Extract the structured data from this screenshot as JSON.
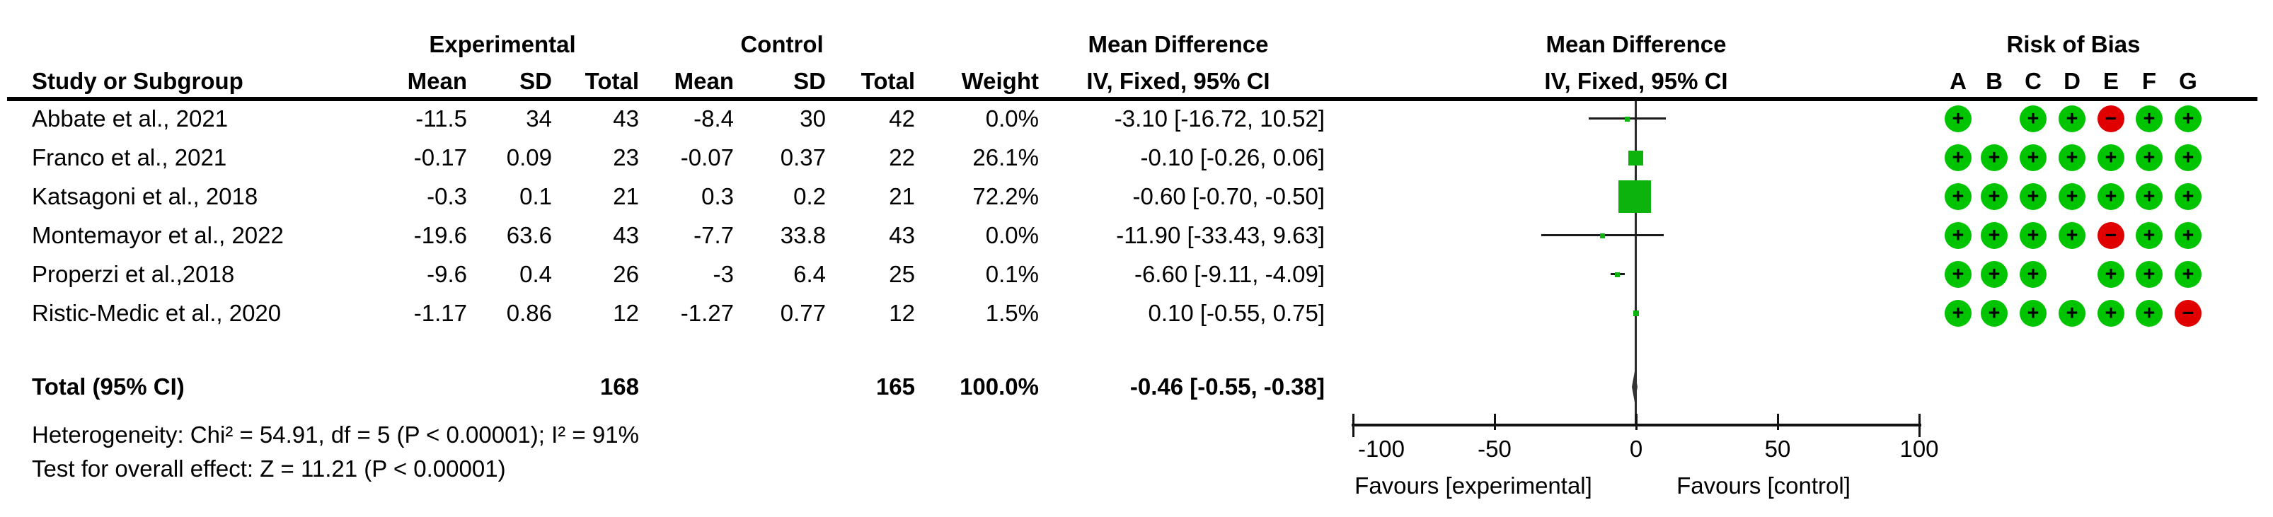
{
  "titles": {
    "experimental": "Experimental",
    "control": "Control",
    "md_table": "Mean Difference",
    "md_plot": "Mean Difference",
    "iv_table": "IV, Fixed, 95% CI",
    "iv_plot": "IV, Fixed, 95% CI",
    "risk_of_bias": "Risk of Bias"
  },
  "header_row": {
    "study": "Study or Subgroup",
    "mean": "Mean",
    "sd": "SD",
    "total": "Total",
    "weight": "Weight"
  },
  "rob_letters": [
    "A",
    "B",
    "C",
    "D",
    "E",
    "F",
    "G"
  ],
  "chart_data": {
    "type": "forest",
    "effect_measure": "Mean Difference, IV, Fixed, 95% CI",
    "axis": {
      "min": -100,
      "max": 100,
      "ticks": [
        "-100",
        "-50",
        "0",
        "50",
        "100"
      ],
      "tick_values": [
        -100,
        -50,
        0,
        50,
        100
      ],
      "favours_left": "Favours [experimental]",
      "favours_right": "Favours [control]"
    },
    "studies": [
      {
        "name": "Abbate et al., 2021",
        "mean_e": "-11.5",
        "sd_e": "34",
        "total_e": "43",
        "mean_c": "-8.4",
        "sd_c": "30",
        "total_c": "42",
        "weight": "0.0%",
        "weight_pct": 0.0,
        "md": -3.1,
        "ci_low": -16.72,
        "ci_high": 10.52,
        "ci_text": "-3.10 [-16.72, 10.52]",
        "rob": [
          "+",
          null,
          "+",
          "+",
          "-",
          "+",
          "+"
        ]
      },
      {
        "name": "Franco et al., 2021",
        "mean_e": "-0.17",
        "sd_e": "0.09",
        "total_e": "23",
        "mean_c": "-0.07",
        "sd_c": "0.37",
        "total_c": "22",
        "weight": "26.1%",
        "weight_pct": 26.1,
        "md": -0.1,
        "ci_low": -0.26,
        "ci_high": 0.06,
        "ci_text": "-0.10 [-0.26, 0.06]",
        "rob": [
          "+",
          "+",
          "+",
          "+",
          "+",
          "+",
          "+"
        ]
      },
      {
        "name": "Katsagoni et al., 2018",
        "mean_e": "-0.3",
        "sd_e": "0.1",
        "total_e": "21",
        "mean_c": "0.3",
        "sd_c": "0.2",
        "total_c": "21",
        "weight": "72.2%",
        "weight_pct": 72.2,
        "md": -0.6,
        "ci_low": -0.7,
        "ci_high": -0.5,
        "ci_text": "-0.60 [-0.70, -0.50]",
        "rob": [
          "+",
          "+",
          "+",
          "+",
          "+",
          "+",
          "+"
        ]
      },
      {
        "name": "Montemayor et al., 2022",
        "mean_e": "-19.6",
        "sd_e": "63.6",
        "total_e": "43",
        "mean_c": "-7.7",
        "sd_c": "33.8",
        "total_c": "43",
        "weight": "0.0%",
        "weight_pct": 0.0,
        "md": -11.9,
        "ci_low": -33.43,
        "ci_high": 9.63,
        "ci_text": "-11.90 [-33.43, 9.63]",
        "rob": [
          "+",
          "+",
          "+",
          "+",
          "-",
          "+",
          "+"
        ]
      },
      {
        "name": "Properzi et al.,2018",
        "mean_e": "-9.6",
        "sd_e": "0.4",
        "total_e": "26",
        "mean_c": "-3",
        "sd_c": "6.4",
        "total_c": "25",
        "weight": "0.1%",
        "weight_pct": 0.1,
        "md": -6.6,
        "ci_low": -9.11,
        "ci_high": -4.09,
        "ci_text": "-6.60 [-9.11, -4.09]",
        "rob": [
          "+",
          "+",
          "+",
          null,
          "+",
          "+",
          "+"
        ]
      },
      {
        "name": "Ristic-Medic et al., 2020",
        "mean_e": "-1.17",
        "sd_e": "0.86",
        "total_e": "12",
        "mean_c": "-1.27",
        "sd_c": "0.77",
        "total_c": "12",
        "weight": "1.5%",
        "weight_pct": 1.5,
        "md": 0.1,
        "ci_low": -0.55,
        "ci_high": 0.75,
        "ci_text": "0.10 [-0.55, 0.75]",
        "rob": [
          "+",
          "+",
          "+",
          "+",
          "+",
          "+",
          "-"
        ]
      }
    ],
    "total": {
      "label": "Total (95% CI)",
      "total_e": "168",
      "total_c": "165",
      "weight": "100.0%",
      "md": -0.46,
      "ci_low": -0.55,
      "ci_high": -0.38,
      "ci_text": "-0.46 [-0.55, -0.38]"
    },
    "heterogeneity": "Heterogeneity: Chi² = 54.91, df = 5 (P < 0.00001); I² = 91%",
    "overall_effect": "Test for overall effect: Z = 11.21 (P < 0.00001)",
    "colors": {
      "square_green": "#0db30d",
      "rob_green": "#00c400",
      "rob_red": "#e00000",
      "diamond": "#333333",
      "line": "#1a1a1a"
    }
  }
}
